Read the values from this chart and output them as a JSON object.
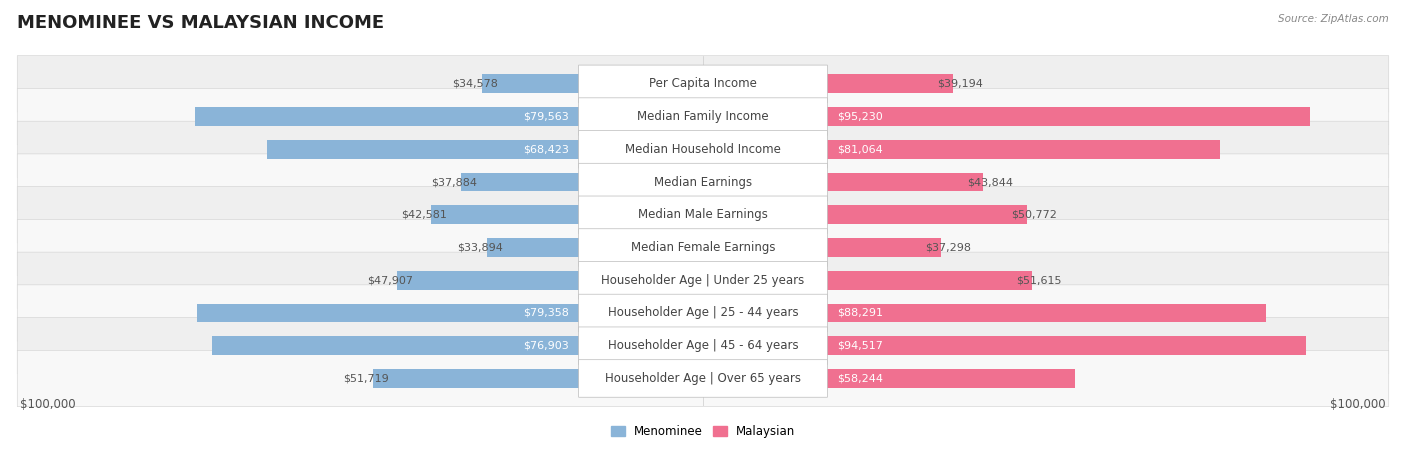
{
  "title": "MENOMINEE VS MALAYSIAN INCOME",
  "source": "Source: ZipAtlas.com",
  "categories": [
    "Per Capita Income",
    "Median Family Income",
    "Median Household Income",
    "Median Earnings",
    "Median Male Earnings",
    "Median Female Earnings",
    "Householder Age | Under 25 years",
    "Householder Age | 25 - 44 years",
    "Householder Age | 45 - 64 years",
    "Householder Age | Over 65 years"
  ],
  "menominee_values": [
    34578,
    79563,
    68423,
    37884,
    42581,
    33894,
    47907,
    79358,
    76903,
    51719
  ],
  "malaysian_values": [
    39194,
    95230,
    81064,
    43844,
    50772,
    37298,
    51615,
    88291,
    94517,
    58244
  ],
  "menominee_color": "#8ab4d8",
  "malaysian_color": "#f07090",
  "row_bg_even": "#efefef",
  "row_bg_odd": "#f8f8f8",
  "axis_max": 100000,
  "xlabel_left": "$100,000",
  "xlabel_right": "$100,000",
  "legend_menominee": "Menominee",
  "legend_malaysian": "Malaysian",
  "title_fontsize": 13,
  "label_fontsize": 8.5,
  "value_fontsize": 8.0,
  "white_text_threshold": 55000
}
